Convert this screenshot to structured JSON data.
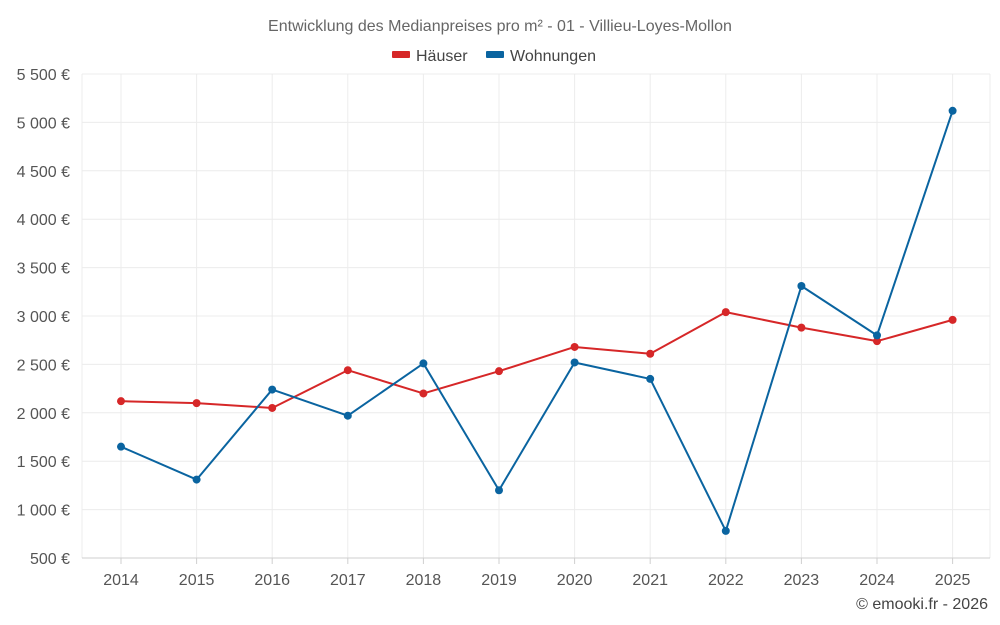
{
  "chart_data": {
    "type": "line",
    "title": "Entwicklung des Medianpreises pro m² - 01 - Villieu-Loyes-Mollon",
    "categories": [
      "2014",
      "2015",
      "2016",
      "2017",
      "2018",
      "2019",
      "2020",
      "2021",
      "2022",
      "2023",
      "2024",
      "2025"
    ],
    "y_ticks": [
      "500 €",
      "1 000 €",
      "1 500 €",
      "2 000 €",
      "2 500 €",
      "3 000 €",
      "3 500 €",
      "4 000 €",
      "4 500 €",
      "5 000 €",
      "5 500 €"
    ],
    "y_tick_values": [
      500,
      1000,
      1500,
      2000,
      2500,
      3000,
      3500,
      4000,
      4500,
      5000,
      5500
    ],
    "ylim": [
      500,
      5500
    ],
    "series": [
      {
        "name": "Häuser",
        "color": "#d62728",
        "values": [
          2120,
          2100,
          2050,
          2440,
          2200,
          2430,
          2680,
          2610,
          3040,
          2880,
          2740,
          2960
        ]
      },
      {
        "name": "Wohnungen",
        "color": "#0a64a0",
        "values": [
          1650,
          1310,
          2240,
          1970,
          2510,
          1200,
          2520,
          2350,
          780,
          3310,
          2800,
          5120
        ]
      }
    ],
    "legend_position": "top-center",
    "grid": true
  },
  "credit": "© emooki.fr - 2026"
}
